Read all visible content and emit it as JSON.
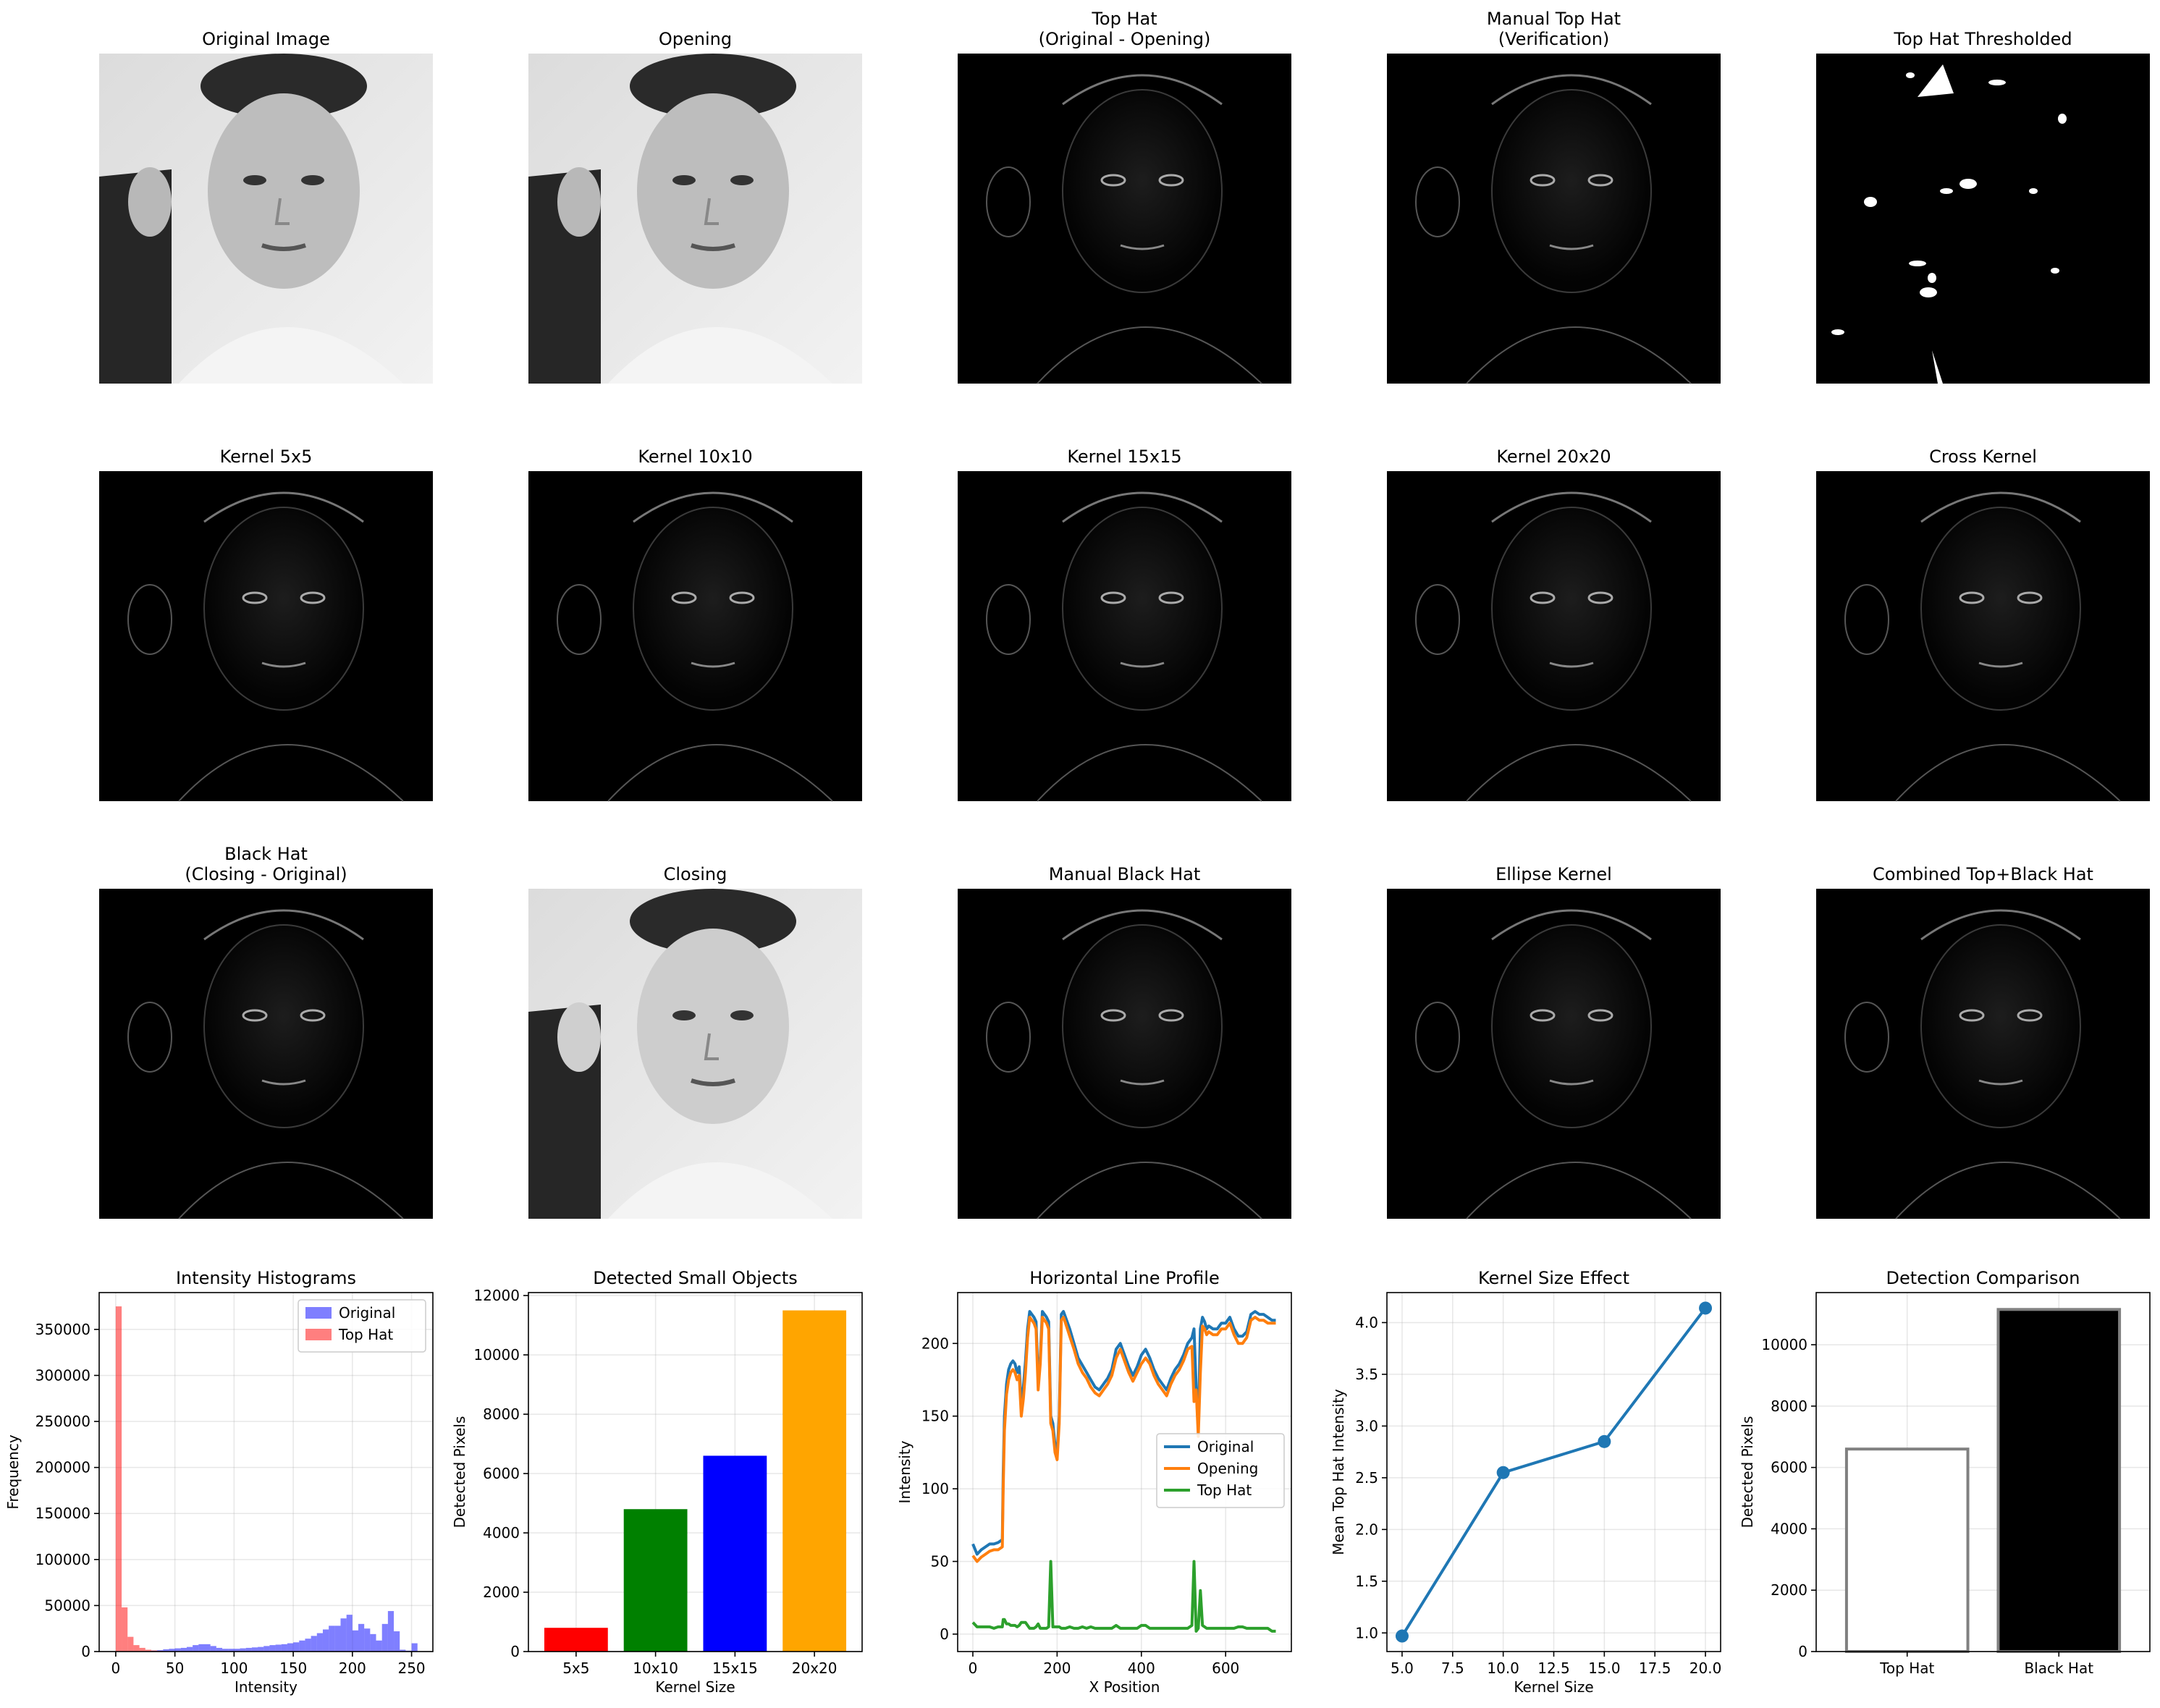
{
  "panel_titles": {
    "r0": [
      "Original Image",
      "Opening",
      "Top Hat\n(Original - Opening)",
      "Manual Top Hat\n(Verification)",
      "Top Hat Thresholded"
    ],
    "r1": [
      "Kernel 5x5",
      "Kernel 10x10",
      "Kernel 15x15",
      "Kernel 20x20",
      "Cross Kernel"
    ],
    "r2": [
      "Black Hat\n(Closing - Original)",
      "Closing",
      "Manual Black Hat",
      "Ellipse Kernel",
      "Combined Top+Black Hat"
    ]
  },
  "chart_data": [
    {
      "type": "bar",
      "title": "Intensity Histograms",
      "xlabel": "Intensity",
      "ylabel": "Frequency",
      "xlim": [
        -14,
        268
      ],
      "ylim": [
        0,
        390000
      ],
      "xticks": [
        0,
        50,
        100,
        150,
        200,
        250
      ],
      "yticks": [
        0,
        50000,
        100000,
        150000,
        200000,
        250000,
        300000,
        350000
      ],
      "grid": true,
      "legend_position": "top-right",
      "series": [
        {
          "name": "Original",
          "color": "#0000ff",
          "bin_width": 5,
          "bin_starts": [
            0,
            5,
            10,
            15,
            20,
            25,
            30,
            35,
            40,
            45,
            50,
            55,
            60,
            65,
            70,
            75,
            80,
            85,
            90,
            95,
            100,
            105,
            110,
            115,
            120,
            125,
            130,
            135,
            140,
            145,
            150,
            155,
            160,
            165,
            170,
            175,
            180,
            185,
            190,
            195,
            200,
            205,
            210,
            215,
            220,
            225,
            230,
            235,
            240,
            245,
            250
          ],
          "values": [
            0,
            0,
            0,
            0,
            0,
            500,
            1000,
            1500,
            2500,
            3000,
            3500,
            4000,
            5000,
            7000,
            8000,
            8000,
            6000,
            4000,
            3000,
            3000,
            3000,
            3500,
            4000,
            4500,
            5000,
            6000,
            7000,
            7500,
            8000,
            9000,
            10000,
            12000,
            14000,
            17000,
            20000,
            24000,
            28000,
            28000,
            36000,
            40000,
            23000,
            30000,
            25000,
            19000,
            12000,
            30000,
            44000,
            22000,
            2000,
            1000,
            9000
          ]
        },
        {
          "name": "Top Hat",
          "color": "#ff0000",
          "bin_width": 5,
          "bin_starts": [
            0,
            5,
            10,
            15,
            20,
            25,
            30,
            35,
            40
          ],
          "values": [
            375000,
            48000,
            16000,
            7000,
            4000,
            2000,
            1200,
            700,
            300
          ]
        }
      ]
    },
    {
      "type": "bar",
      "title": "Detected Small Objects",
      "xlabel": "Kernel Size",
      "ylabel": "Detected Pixels",
      "categories": [
        "5x5",
        "10x10",
        "15x15",
        "20x20"
      ],
      "values": [
        800,
        4800,
        6600,
        11500
      ],
      "colors": [
        "#ff0000",
        "#008000",
        "#0000ff",
        "#ffa500"
      ],
      "ylim": [
        0,
        12100
      ],
      "yticks": [
        0,
        2000,
        4000,
        6000,
        8000,
        10000,
        12000
      ],
      "grid": true
    },
    {
      "type": "line",
      "title": "Horizontal Line Profile",
      "xlabel": "X Position",
      "ylabel": "Intensity",
      "xlim": [
        -36,
        756
      ],
      "ylim": [
        -12,
        235
      ],
      "xticks": [
        0,
        200,
        400,
        600
      ],
      "yticks": [
        0,
        50,
        100,
        150,
        200
      ],
      "grid": true,
      "legend_position": "center-right",
      "x": [
        0,
        10,
        20,
        30,
        40,
        50,
        60,
        70,
        72,
        75,
        80,
        85,
        90,
        95,
        100,
        105,
        110,
        115,
        120,
        125,
        130,
        135,
        140,
        145,
        150,
        155,
        160,
        165,
        170,
        175,
        180,
        185,
        190,
        195,
        200,
        205,
        210,
        215,
        220,
        230,
        240,
        250,
        260,
        270,
        280,
        290,
        300,
        310,
        320,
        330,
        340,
        350,
        360,
        370,
        380,
        390,
        400,
        410,
        420,
        430,
        440,
        450,
        460,
        470,
        480,
        490,
        500,
        510,
        520,
        525,
        530,
        535,
        540,
        545,
        550,
        555,
        560,
        570,
        580,
        590,
        600,
        610,
        620,
        630,
        640,
        650,
        660,
        670,
        680,
        690,
        700,
        710,
        719
      ],
      "series": [
        {
          "name": "Original",
          "color": "#1f77b4",
          "values": [
            62,
            55,
            58,
            60,
            62,
            62,
            63,
            65,
            110,
            150,
            172,
            182,
            186,
            188,
            186,
            180,
            184,
            158,
            170,
            188,
            210,
            222,
            220,
            218,
            215,
            175,
            190,
            222,
            220,
            218,
            215,
            150,
            145,
            130,
            125,
            150,
            220,
            222,
            218,
            210,
            200,
            190,
            185,
            180,
            175,
            170,
            168,
            172,
            176,
            182,
            196,
            200,
            192,
            184,
            178,
            184,
            192,
            196,
            190,
            182,
            176,
            172,
            168,
            176,
            182,
            186,
            192,
            200,
            204,
            210,
            170,
            140,
            210,
            218,
            215,
            210,
            212,
            210,
            210,
            214,
            214,
            218,
            210,
            205,
            205,
            208,
            220,
            222,
            220,
            220,
            218,
            216,
            216
          ]
        },
        {
          "name": "Opening",
          "color": "#ff7f0e",
          "values": [
            54,
            50,
            53,
            55,
            57,
            58,
            58,
            60,
            100,
            140,
            165,
            175,
            180,
            182,
            180,
            175,
            178,
            150,
            162,
            180,
            204,
            218,
            216,
            214,
            210,
            168,
            186,
            218,
            216,
            214,
            210,
            145,
            140,
            125,
            120,
            145,
            216,
            218,
            214,
            205,
            196,
            186,
            180,
            176,
            170,
            166,
            164,
            168,
            172,
            178,
            190,
            196,
            188,
            180,
            174,
            180,
            186,
            190,
            186,
            178,
            172,
            168,
            164,
            172,
            178,
            182,
            188,
            196,
            198,
            160,
            168,
            136,
            180,
            212,
            210,
            206,
            208,
            206,
            206,
            210,
            210,
            214,
            206,
            200,
            200,
            204,
            216,
            218,
            216,
            216,
            214,
            214,
            214
          ]
        },
        {
          "name": "Top Hat",
          "color": "#2ca02c",
          "values": [
            8,
            5,
            5,
            5,
            5,
            4,
            5,
            5,
            10,
            10,
            7,
            7,
            6,
            6,
            6,
            5,
            6,
            8,
            8,
            8,
            6,
            4,
            4,
            4,
            5,
            7,
            4,
            4,
            4,
            4,
            5,
            50,
            5,
            5,
            5,
            5,
            4,
            4,
            4,
            5,
            4,
            4,
            5,
            4,
            5,
            4,
            4,
            4,
            4,
            4,
            6,
            4,
            4,
            4,
            4,
            4,
            6,
            6,
            4,
            4,
            4,
            4,
            4,
            4,
            4,
            4,
            4,
            4,
            6,
            50,
            2,
            4,
            30,
            6,
            5,
            4,
            4,
            4,
            4,
            4,
            4,
            4,
            4,
            5,
            5,
            4,
            4,
            4,
            4,
            4,
            4,
            2,
            2
          ]
        }
      ]
    },
    {
      "type": "line",
      "title": "Kernel Size Effect",
      "xlabel": "Kernel Size",
      "ylabel": "Mean Top Hat Intensity",
      "xlim": [
        4.25,
        20.75
      ],
      "ylim": [
        0.82,
        4.29
      ],
      "xticks": [
        5.0,
        7.5,
        10.0,
        12.5,
        15.0,
        17.5,
        20.0
      ],
      "yticks": [
        1.0,
        1.5,
        2.0,
        2.5,
        3.0,
        3.5,
        4.0
      ],
      "grid": true,
      "x": [
        5,
        10,
        15,
        20
      ],
      "series": [
        {
          "color": "#1f77b4",
          "values": [
            0.97,
            2.55,
            2.85,
            4.14
          ]
        }
      ]
    },
    {
      "type": "bar",
      "title": "Detection Comparison",
      "ylabel": "Detected Pixels",
      "categories": [
        "Top Hat",
        "Black Hat"
      ],
      "values": [
        6600,
        11150
      ],
      "colors": [
        "#ffffff",
        "#000000"
      ],
      "edgecolor": "#808080",
      "ylim": [
        0,
        11700
      ],
      "yticks": [
        0,
        2000,
        4000,
        6000,
        8000,
        10000
      ],
      "grid": true
    }
  ]
}
